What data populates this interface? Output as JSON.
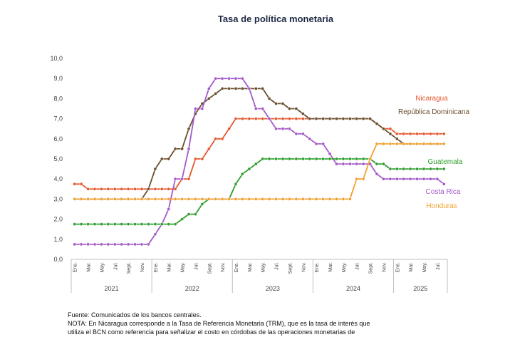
{
  "chart_data": {
    "type": "line",
    "title": "Tasa de política monetaria",
    "xlabel": "",
    "ylabel": "",
    "ylim": [
      0,
      10
    ],
    "yticks": [
      "0,0",
      "1,0",
      "2,0",
      "3,0",
      "4,0",
      "5,0",
      "6,0",
      "7,0",
      "8,0",
      "9,0",
      "10,0"
    ],
    "grid": false,
    "legend": "labels-at-line-ends",
    "month_tick_labels": [
      "Ene.",
      "Mar.",
      "May.",
      "Jul.",
      "Sept.",
      "Nov.",
      "Ene.",
      "Mar.",
      "May.",
      "Jul.",
      "Sept.",
      "Nov.",
      "Ene.",
      "Mar.",
      "May.",
      "Jul.",
      "Sept.",
      "Nov.",
      "Ene.",
      "Mar.",
      "May.",
      "Jul.",
      "Sept.",
      "Nov.",
      "Ene.",
      "Mar.",
      "May.",
      "Jul."
    ],
    "years": [
      "2021",
      "2022",
      "2023",
      "2024",
      "2025"
    ],
    "x_start": "2021-01",
    "series": [
      {
        "name": "Nicaragua",
        "color": "#e4572e",
        "values": [
          3.75,
          3.75,
          3.5,
          3.5,
          3.5,
          3.5,
          3.5,
          3.5,
          3.5,
          3.5,
          3.5,
          3.5,
          3.5,
          3.5,
          3.5,
          3.5,
          4.0,
          4.0,
          5.0,
          5.0,
          5.5,
          6.0,
          6.0,
          6.5,
          7.0,
          7.0,
          7.0,
          7.0,
          7.0,
          7.0,
          7.0,
          7.0,
          7.0,
          7.0,
          7.0,
          7.0,
          7.0,
          7.0,
          7.0,
          7.0,
          7.0,
          7.0,
          7.0,
          7.0,
          7.0,
          6.75,
          6.5,
          6.5,
          6.25,
          6.25,
          6.25,
          6.25,
          6.25,
          6.25,
          6.25,
          6.25
        ]
      },
      {
        "name": "República Dominicana",
        "color": "#6b4f2e",
        "values": [
          3.0,
          3.0,
          3.0,
          3.0,
          3.0,
          3.0,
          3.0,
          3.0,
          3.0,
          3.0,
          3.0,
          3.5,
          4.5,
          5.0,
          5.0,
          5.5,
          5.5,
          6.5,
          7.25,
          7.75,
          8.0,
          8.25,
          8.5,
          8.5,
          8.5,
          8.5,
          8.5,
          8.5,
          8.5,
          8.0,
          7.75,
          7.75,
          7.5,
          7.5,
          7.25,
          7.0,
          7.0,
          7.0,
          7.0,
          7.0,
          7.0,
          7.0,
          7.0,
          7.0,
          7.0,
          6.75,
          6.5,
          6.25,
          6.0,
          5.75,
          5.75,
          5.75,
          5.75,
          5.75,
          5.75,
          5.75
        ]
      },
      {
        "name": "Costa Rica",
        "color": "#a459c9",
        "values": [
          0.75,
          0.75,
          0.75,
          0.75,
          0.75,
          0.75,
          0.75,
          0.75,
          0.75,
          0.75,
          0.75,
          0.75,
          1.25,
          1.75,
          2.5,
          4.0,
          4.0,
          5.5,
          7.5,
          7.5,
          8.5,
          9.0,
          9.0,
          9.0,
          9.0,
          9.0,
          8.5,
          7.5,
          7.5,
          7.0,
          6.5,
          6.5,
          6.5,
          6.25,
          6.25,
          6.0,
          5.75,
          5.75,
          5.25,
          4.75,
          4.75,
          4.75,
          4.75,
          4.75,
          4.75,
          4.25,
          4.0,
          4.0,
          4.0,
          4.0,
          4.0,
          4.0,
          4.0,
          4.0,
          4.0,
          3.75
        ]
      },
      {
        "name": "Guatemala",
        "color": "#2e9e2e",
        "values": [
          1.75,
          1.75,
          1.75,
          1.75,
          1.75,
          1.75,
          1.75,
          1.75,
          1.75,
          1.75,
          1.75,
          1.75,
          1.75,
          1.75,
          1.75,
          1.75,
          2.0,
          2.25,
          2.25,
          2.75,
          3.0,
          3.0,
          3.0,
          3.0,
          3.75,
          4.25,
          4.5,
          4.75,
          5.0,
          5.0,
          5.0,
          5.0,
          5.0,
          5.0,
          5.0,
          5.0,
          5.0,
          5.0,
          5.0,
          5.0,
          5.0,
          5.0,
          5.0,
          5.0,
          5.0,
          4.75,
          4.75,
          4.5,
          4.5,
          4.5,
          4.5,
          4.5,
          4.5,
          4.5,
          4.5,
          4.5
        ]
      },
      {
        "name": "Honduras",
        "color": "#f0a030",
        "values": [
          3.0,
          3.0,
          3.0,
          3.0,
          3.0,
          3.0,
          3.0,
          3.0,
          3.0,
          3.0,
          3.0,
          3.0,
          3.0,
          3.0,
          3.0,
          3.0,
          3.0,
          3.0,
          3.0,
          3.0,
          3.0,
          3.0,
          3.0,
          3.0,
          3.0,
          3.0,
          3.0,
          3.0,
          3.0,
          3.0,
          3.0,
          3.0,
          3.0,
          3.0,
          3.0,
          3.0,
          3.0,
          3.0,
          3.0,
          3.0,
          3.0,
          3.0,
          4.0,
          4.0,
          5.0,
          5.75,
          5.75,
          5.75,
          5.75,
          5.75,
          5.75,
          5.75,
          5.75,
          5.75,
          5.75,
          5.75
        ]
      }
    ]
  },
  "notes": {
    "source": "Fuente: Comunicados de los bancos centrales.",
    "nota_line1": "NOTA: En Nicaragua corresponde a la Tasa de Referencia Monetaria (TRM), que es la tasa de interés que",
    "nota_line2": "utiliza el BCN como referencia para señalizar el costo en córdobas de las operaciones monetarias de"
  }
}
